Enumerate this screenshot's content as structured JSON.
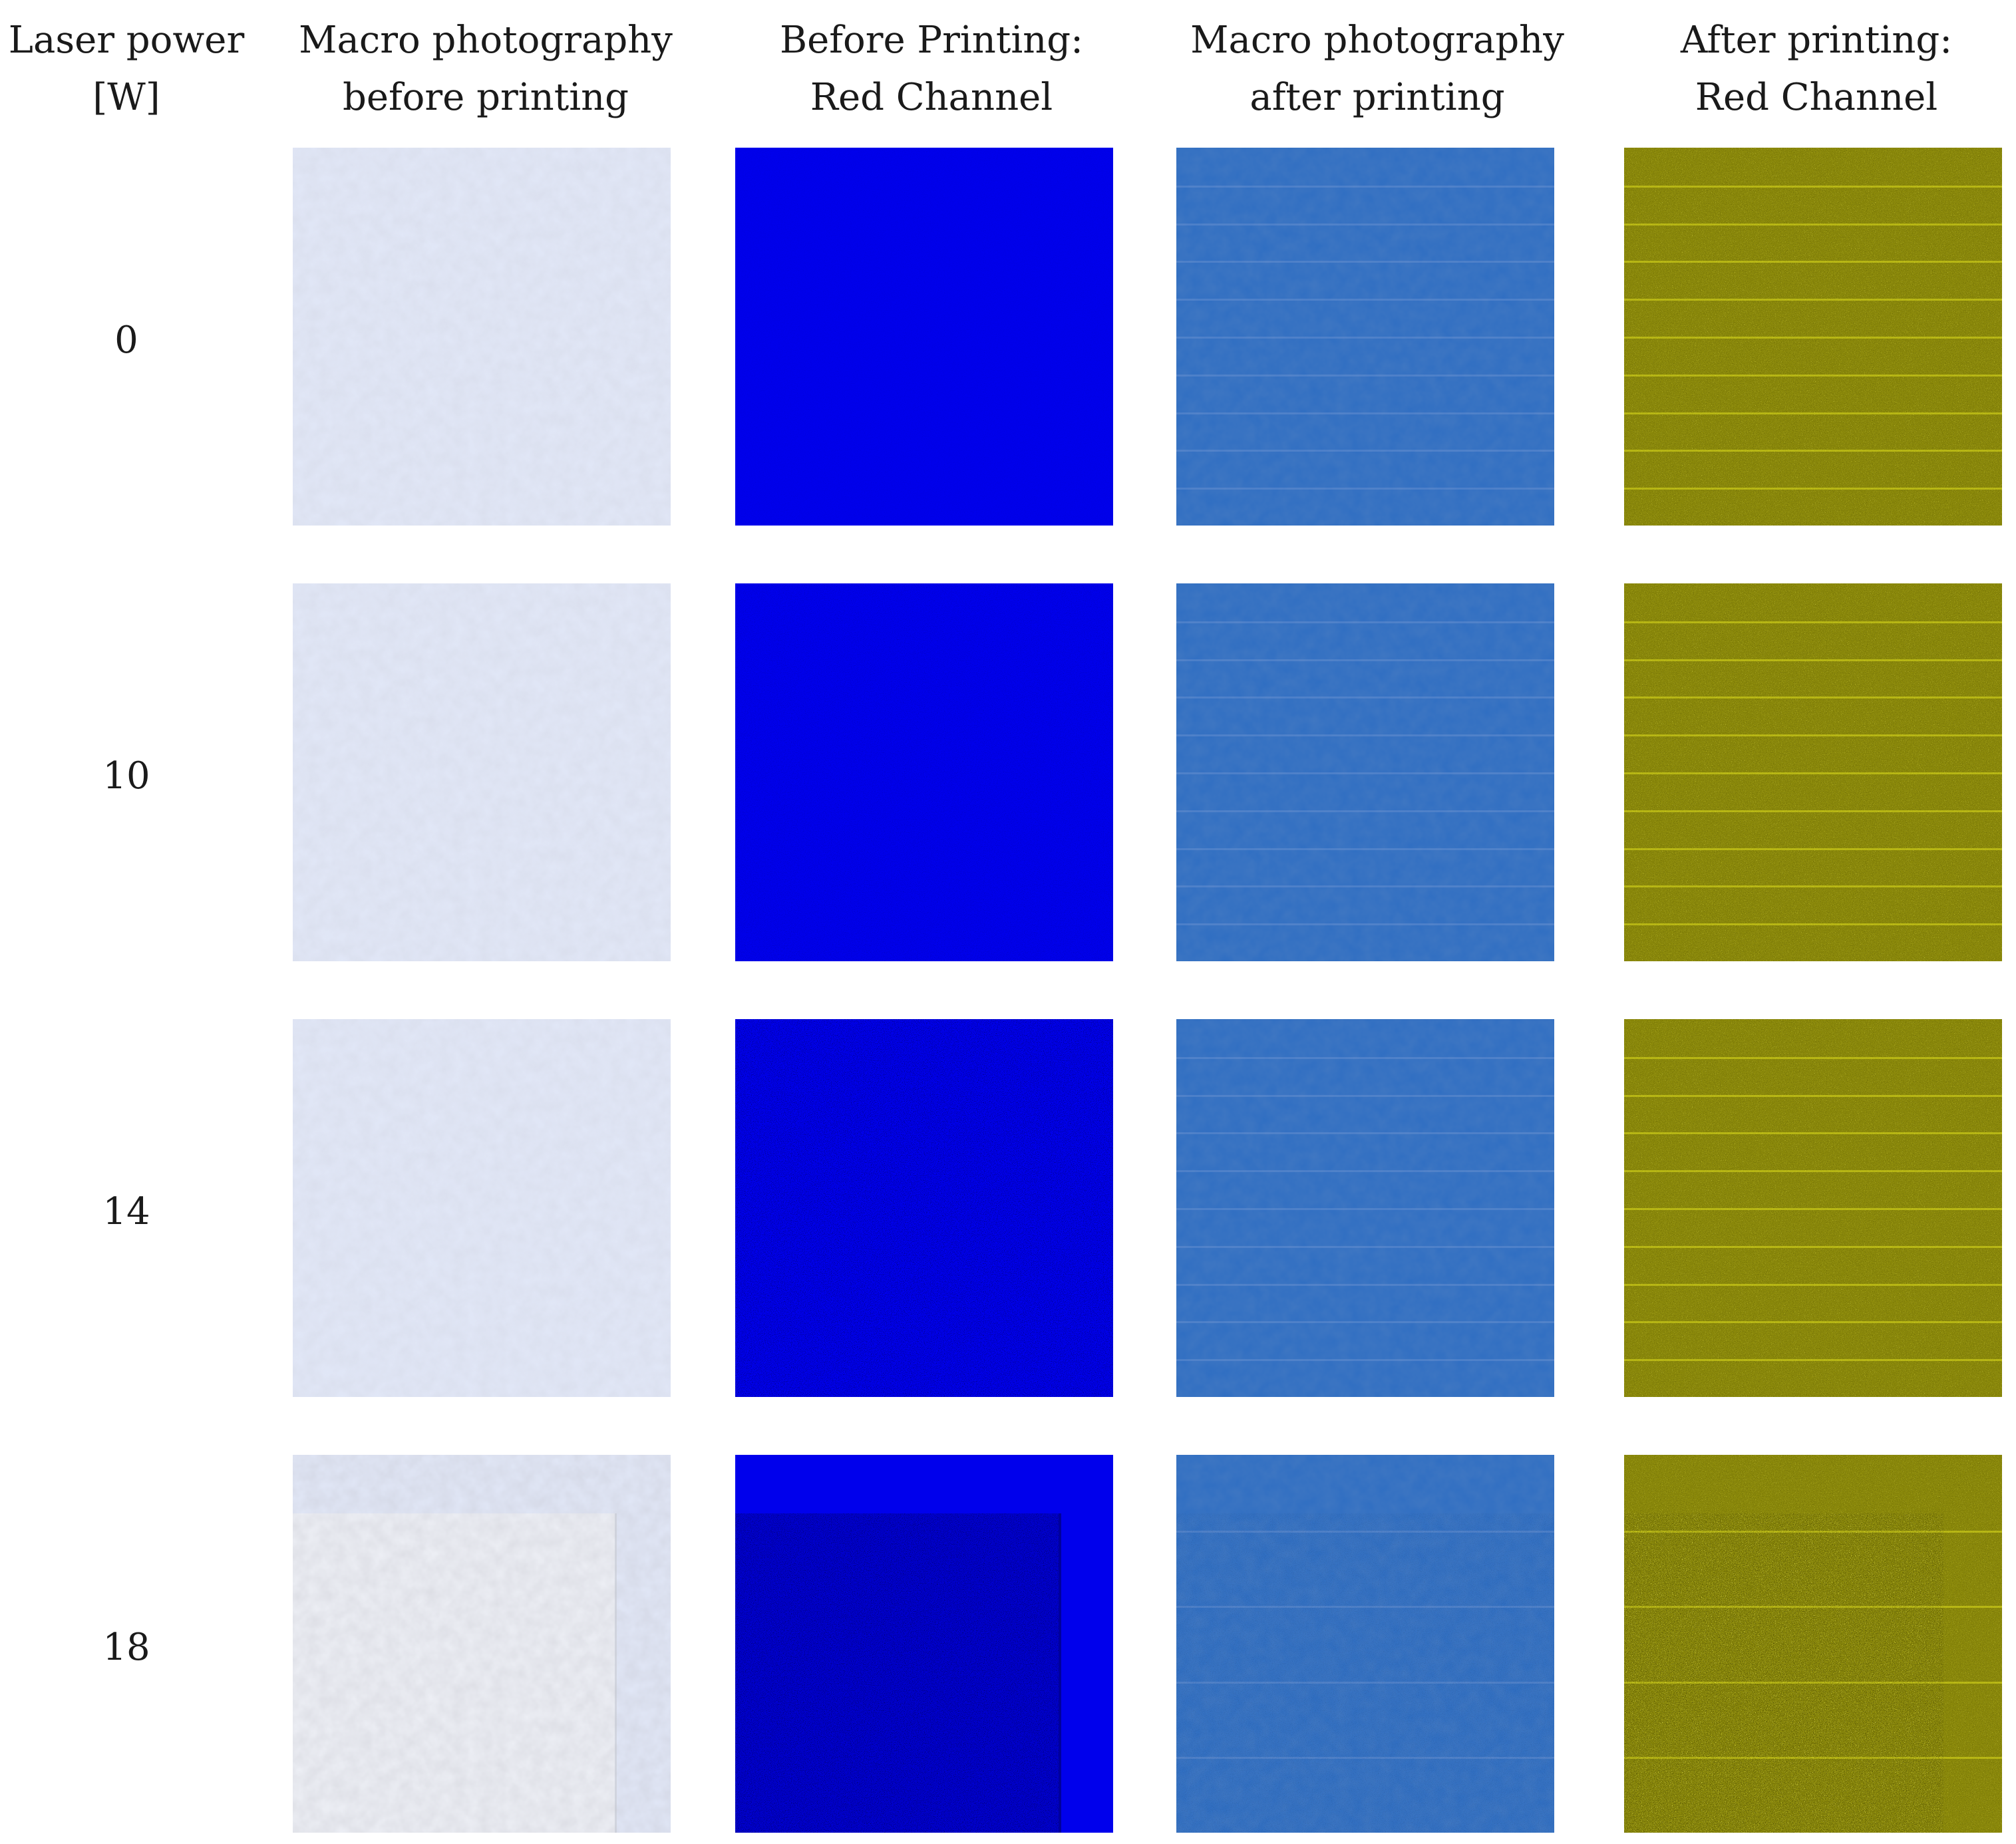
{
  "headers": {
    "laser_power": [
      "Laser power",
      "[W]"
    ],
    "macro_before": [
      "Macro photography",
      "before printing"
    ],
    "before_red": [
      "Before Printing:",
      "Red Channel"
    ],
    "macro_after": [
      "Macro photography",
      "after printing"
    ],
    "after_red": [
      "After printing:",
      "Red Channel"
    ]
  },
  "rows": [
    {
      "power": "0"
    },
    {
      "power": "10"
    },
    {
      "power": "14"
    },
    {
      "power": "18"
    }
  ],
  "colors": {
    "paper_before": "#e2e8f8",
    "paper_before_18_inner": "#eef0f6",
    "red_channel_before": "#0000ec",
    "red_channel_before_dark": "#00009c",
    "paper_after": "#2f6ec2",
    "red_channel_after": "#8c8a0a",
    "red_channel_after_highlight": "#e6e61e"
  }
}
